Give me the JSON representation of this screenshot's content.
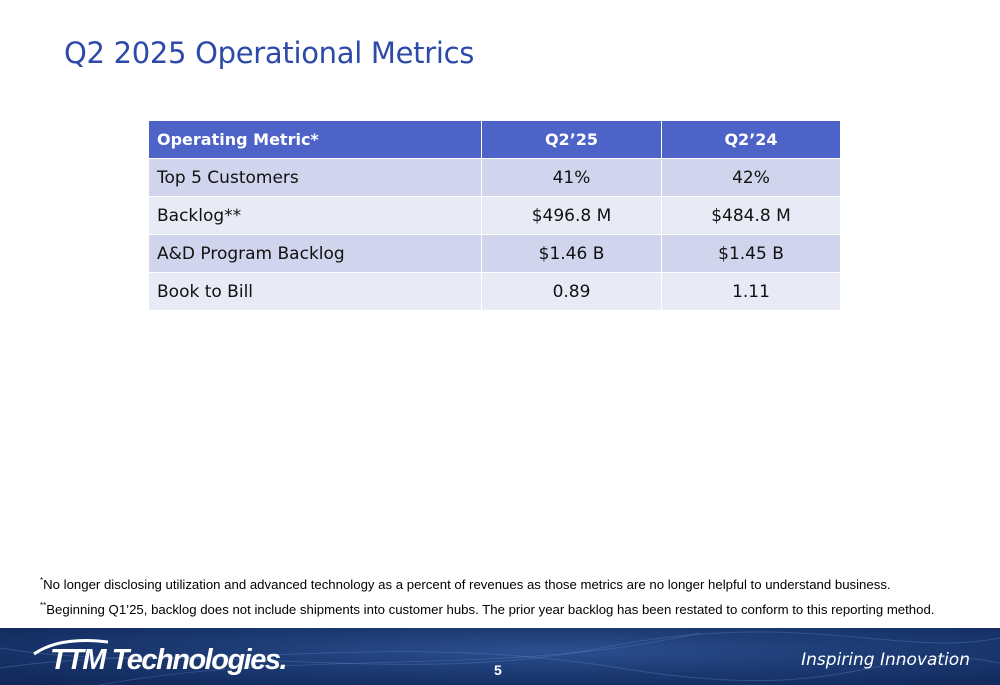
{
  "title": "Q2 2025 Operational Metrics",
  "table": {
    "headers": [
      "Operating Metric*",
      "Q2’25",
      "Q2’24"
    ],
    "rows": [
      [
        "Top 5 Customers",
        "41%",
        "42%"
      ],
      [
        "Backlog**",
        "$496.8 M",
        "$484.8 M"
      ],
      [
        "A&D Program Backlog",
        "$1.46 B",
        "$1.45 B"
      ],
      [
        "Book to Bill",
        "0.89",
        "1.11"
      ]
    ]
  },
  "footnotes": [
    {
      "marker": "*",
      "text": "No longer disclosing utilization and advanced technology as a percent of revenues as those metrics are no longer helpful to understand business."
    },
    {
      "marker": "**",
      "text": "Beginning Q1’25, backlog does not include shipments into customer hubs. The prior year backlog has been restated to conform to this reporting method."
    }
  ],
  "footer": {
    "logo_text": "TTM Technologies",
    "logo_mark": ".",
    "page_number": "5",
    "tagline": "Inspiring Innovation"
  }
}
